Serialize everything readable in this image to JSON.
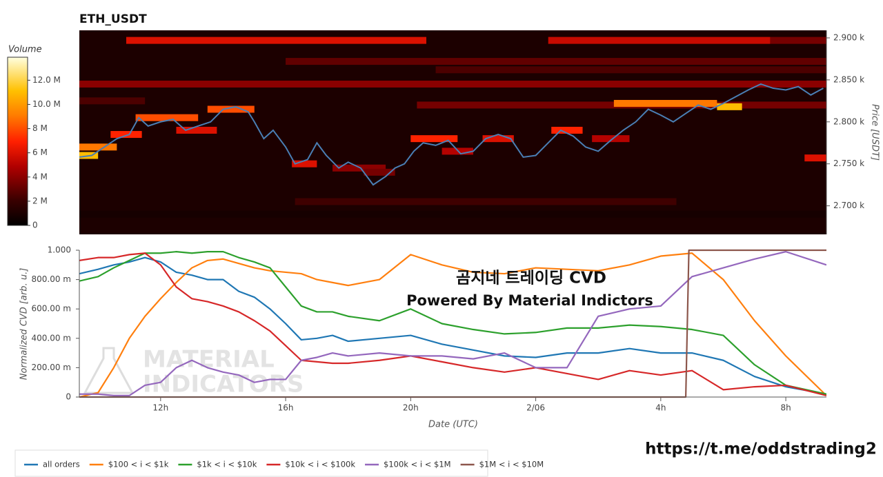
{
  "chart_data": [
    {
      "type": "heatmap",
      "title": "ETH_USDT",
      "ylabel": "Price [USDT]",
      "xlim": [
        9.4,
        33.3
      ],
      "ylim": [
        2666,
        2909
      ],
      "yticks": [
        {
          "value": 2700,
          "label": "2.700 k"
        },
        {
          "value": 2750,
          "label": "2.750 k"
        },
        {
          "value": 2800,
          "label": "2.800 k"
        },
        {
          "value": 2850,
          "label": "2.850 k"
        },
        {
          "value": 2900,
          "label": "2.900 k"
        }
      ],
      "colorbar": {
        "title": "Volume",
        "lim": [
          0,
          13.9
        ],
        "ticks": [
          0,
          {
            "value": 2,
            "label": "2 M"
          },
          {
            "value": 4,
            "label": "4 M"
          },
          {
            "value": 6,
            "label": "6 M"
          },
          {
            "value": 8,
            "label": "8 M"
          },
          {
            "value": 10,
            "label": "10.0 M"
          },
          {
            "value": 12,
            "label": "12.0 M"
          }
        ]
      },
      "cells": [
        {
          "price": 2690,
          "start": 9.4,
          "end": 33.3,
          "volume": 0.8
        },
        {
          "price": 2715,
          "start": 9.4,
          "end": 33.3,
          "volume": 1.0
        },
        {
          "price": 2705,
          "start": 16.3,
          "end": 28.5,
          "volume": 2.2
        },
        {
          "price": 2845,
          "start": 9.4,
          "end": 33.3,
          "volume": 4
        },
        {
          "price": 2872,
          "start": 16.0,
          "end": 33.3,
          "volume": 3
        },
        {
          "price": 2862,
          "start": 20.8,
          "end": 33.3,
          "volume": 2.5
        },
        {
          "price": 2897,
          "start": 10.9,
          "end": 20.5,
          "volume": 6
        },
        {
          "price": 2897,
          "start": 24.4,
          "end": 31.5,
          "volume": 5.5
        },
        {
          "price": 2897,
          "start": 31.5,
          "end": 33.3,
          "volume": 3.5
        },
        {
          "price": 2825,
          "start": 9.4,
          "end": 11.5,
          "volume": 2.5
        },
        {
          "price": 2820,
          "start": 20.2,
          "end": 33.3,
          "volume": 3.5
        },
        {
          "price": 2815,
          "start": 13.5,
          "end": 15.0,
          "volume": 8
        },
        {
          "price": 2822,
          "start": 26.5,
          "end": 29.8,
          "volume": 9
        },
        {
          "price": 2818,
          "start": 29.8,
          "end": 30.6,
          "volume": 11
        },
        {
          "price": 2805,
          "start": 11.2,
          "end": 13.2,
          "volume": 8
        },
        {
          "price": 2790,
          "start": 12.5,
          "end": 13.8,
          "volume": 6
        },
        {
          "price": 2785,
          "start": 10.4,
          "end": 11.4,
          "volume": 7
        },
        {
          "price": 2770,
          "start": 9.4,
          "end": 10.6,
          "volume": 9
        },
        {
          "price": 2760,
          "start": 9.4,
          "end": 10.0,
          "volume": 11
        },
        {
          "price": 2750,
          "start": 16.2,
          "end": 17.0,
          "volume": 6
        },
        {
          "price": 2745,
          "start": 17.5,
          "end": 19.2,
          "volume": 4
        },
        {
          "price": 2740,
          "start": 18.5,
          "end": 19.5,
          "volume": 3.5
        },
        {
          "price": 2780,
          "start": 20.0,
          "end": 21.5,
          "volume": 7
        },
        {
          "price": 2765,
          "start": 21.0,
          "end": 22.0,
          "volume": 5
        },
        {
          "price": 2780,
          "start": 22.3,
          "end": 23.3,
          "volume": 6
        },
        {
          "price": 2790,
          "start": 24.5,
          "end": 25.5,
          "volume": 7
        },
        {
          "price": 2780,
          "start": 25.8,
          "end": 27.0,
          "volume": 5
        },
        {
          "price": 2757,
          "start": 32.6,
          "end": 33.3,
          "volume": 6
        }
      ],
      "price_line": {
        "color": "#4a7fb5",
        "x": [
          9.4,
          9.8,
          10.2,
          10.6,
          11.0,
          11.3,
          11.6,
          12.0,
          12.4,
          12.8,
          13.2,
          13.6,
          14.0,
          14.4,
          14.8,
          15.0,
          15.3,
          15.6,
          16.0,
          16.3,
          16.7,
          17.0,
          17.3,
          17.7,
          18.0,
          18.4,
          18.8,
          19.2,
          19.5,
          19.8,
          20.1,
          20.4,
          20.8,
          21.2,
          21.6,
          22.0,
          22.4,
          22.8,
          23.2,
          23.6,
          24.0,
          24.4,
          24.8,
          25.2,
          25.6,
          26.0,
          26.4,
          26.8,
          27.2,
          27.6,
          28.0,
          28.4,
          28.8,
          29.2,
          29.6,
          30.0,
          30.4,
          30.8,
          31.2,
          31.6,
          32.0,
          32.4,
          32.8,
          33.2
        ],
        "values": [
          2758,
          2760,
          2770,
          2780,
          2785,
          2805,
          2795,
          2800,
          2803,
          2790,
          2795,
          2800,
          2815,
          2818,
          2812,
          2800,
          2780,
          2790,
          2770,
          2750,
          2755,
          2775,
          2760,
          2745,
          2752,
          2745,
          2725,
          2735,
          2745,
          2750,
          2765,
          2775,
          2772,
          2778,
          2762,
          2765,
          2780,
          2785,
          2780,
          2758,
          2760,
          2775,
          2790,
          2783,
          2770,
          2765,
          2778,
          2790,
          2800,
          2815,
          2808,
          2800,
          2810,
          2820,
          2815,
          2822,
          2830,
          2838,
          2845,
          2840,
          2838,
          2842,
          2832,
          2840
        ]
      }
    },
    {
      "type": "line",
      "xlabel": "Date (UTC)",
      "ylabel": "Normalized CVD [arb. u.]",
      "xlim": [
        9.4,
        33.3
      ],
      "ylim": [
        0,
        1
      ],
      "xticks": [
        {
          "value": 12,
          "label": "12h"
        },
        {
          "value": 16,
          "label": "16h"
        },
        {
          "value": 20,
          "label": "20h"
        },
        {
          "value": 24,
          "label": "2/06"
        },
        {
          "value": 28,
          "label": "4h"
        },
        {
          "value": 32,
          "label": "8h"
        }
      ],
      "yticks": [
        0,
        {
          "value": 0.2,
          "label": "200.00 m"
        },
        {
          "value": 0.4,
          "label": "400.00 m"
        },
        {
          "value": 0.6,
          "label": "600.00 m"
        },
        {
          "value": 0.8,
          "label": "800.00 m"
        },
        {
          "value": 1,
          "label": "1.000"
        }
      ],
      "annotations": [
        "곰지네 트레이딩 CVD",
        "Powered By Material Indictors"
      ],
      "watermark": [
        "MATERIAL",
        "INDICATORS"
      ],
      "x": [
        9.4,
        10,
        10.5,
        11,
        11.5,
        12,
        12.5,
        13,
        13.5,
        14,
        14.5,
        15,
        15.5,
        16,
        16.5,
        17,
        17.5,
        18,
        19,
        20,
        21,
        22,
        23,
        24,
        25,
        26,
        27,
        28,
        29,
        30,
        31,
        32,
        33.3
      ],
      "series": [
        {
          "name": "all orders",
          "color": "#1f77b4",
          "values": [
            0.84,
            0.87,
            0.9,
            0.92,
            0.95,
            0.92,
            0.85,
            0.83,
            0.8,
            0.8,
            0.72,
            0.68,
            0.6,
            0.5,
            0.39,
            0.4,
            0.42,
            0.38,
            0.4,
            0.42,
            0.36,
            0.32,
            0.28,
            0.27,
            0.3,
            0.3,
            0.33,
            0.3,
            0.3,
            0.25,
            0.14,
            0.07,
            0.02
          ]
        },
        {
          "name": "$100 < i < $1k",
          "color": "#ff7f0e",
          "values": [
            0,
            0.03,
            0.2,
            0.4,
            0.55,
            0.67,
            0.78,
            0.88,
            0.93,
            0.94,
            0.91,
            0.88,
            0.86,
            0.85,
            0.84,
            0.8,
            0.78,
            0.76,
            0.8,
            0.97,
            0.9,
            0.85,
            0.84,
            0.88,
            0.87,
            0.86,
            0.9,
            0.96,
            0.98,
            0.8,
            0.52,
            0.28,
            0.01
          ]
        },
        {
          "name": "$1k < i < $10k",
          "color": "#2ca02c",
          "values": [
            0.79,
            0.82,
            0.88,
            0.93,
            0.98,
            0.98,
            0.99,
            0.98,
            0.99,
            0.99,
            0.95,
            0.92,
            0.88,
            0.75,
            0.62,
            0.58,
            0.58,
            0.55,
            0.52,
            0.6,
            0.5,
            0.46,
            0.43,
            0.44,
            0.47,
            0.47,
            0.49,
            0.48,
            0.46,
            0.42,
            0.22,
            0.08,
            0.02
          ]
        },
        {
          "name": "$10k < i < $100k",
          "color": "#d62728",
          "values": [
            0.93,
            0.95,
            0.95,
            0.97,
            0.98,
            0.9,
            0.75,
            0.67,
            0.65,
            0.62,
            0.58,
            0.52,
            0.45,
            0.35,
            0.25,
            0.24,
            0.23,
            0.23,
            0.25,
            0.28,
            0.24,
            0.2,
            0.17,
            0.2,
            0.16,
            0.12,
            0.18,
            0.15,
            0.18,
            0.05,
            0.07,
            0.08,
            0.01
          ]
        },
        {
          "name": "$100k < i < $1M",
          "color": "#9467bd",
          "values": [
            0.02,
            0.02,
            0.01,
            0.01,
            0.08,
            0.1,
            0.2,
            0.25,
            0.2,
            0.17,
            0.15,
            0.1,
            0.12,
            0.12,
            0.25,
            0.27,
            0.3,
            0.28,
            0.3,
            0.28,
            0.28,
            0.26,
            0.3,
            0.2,
            0.2,
            0.55,
            0.6,
            0.62,
            0.82,
            0.88,
            0.94,
            0.99,
            0.9
          ]
        },
        {
          "name": "$1M < i < $10M",
          "color": "#8c564b",
          "x": [
            9.4,
            28.8,
            28.9,
            33.3
          ],
          "values": [
            0,
            0,
            1,
            1
          ]
        }
      ]
    }
  ],
  "footer": {
    "link": "https://t.me/oddstrading2"
  }
}
